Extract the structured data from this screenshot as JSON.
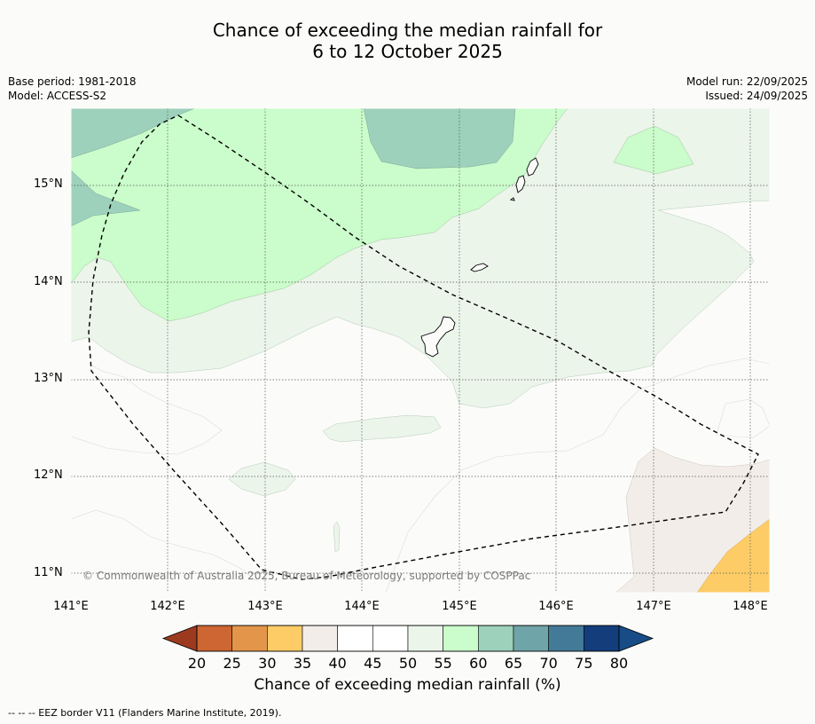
{
  "title": {
    "line1": "Chance of exceeding the median rainfall for",
    "line2": "6 to 12 October 2025"
  },
  "meta_left": {
    "base_period": "Base period: 1981-2018",
    "model": "Model: ACCESS-S2"
  },
  "meta_right": {
    "model_run": "Model run: 22/09/2025",
    "issued": "Issued: 24/09/2025"
  },
  "map": {
    "latitude_labels": [
      "15°N",
      "14°N",
      "13°N",
      "12°N",
      "11°N"
    ],
    "longitude_labels": [
      "141°E",
      "142°E",
      "143°E",
      "144°E",
      "145°E",
      "146°E",
      "147°E",
      "148°E"
    ],
    "copyright": "© Commonwealth of Australia 2025, Bureau of Meteorology, supported by COSPPac"
  },
  "colorbar": {
    "ticks": [
      "20",
      "25",
      "30",
      "35",
      "40",
      "45",
      "50",
      "55",
      "60",
      "65",
      "70",
      "75",
      "80"
    ],
    "label": "Chance of exceeding median rainfall (%)",
    "colors": [
      "#b34b23",
      "#cd6632",
      "#e3964a",
      "#fdcc66",
      "#f2ede8",
      "#ffffff",
      "#ffffff",
      "#ebf5ea",
      "#cbfccb",
      "#9dd1bb",
      "#6fa5a8",
      "#437a98",
      "#143e7b"
    ],
    "under_color": "#9c3a1f",
    "over_color": "#174c87"
  },
  "footer": "--  --  -- EEZ border V11 (Flanders Marine Institute, 2019)."
}
